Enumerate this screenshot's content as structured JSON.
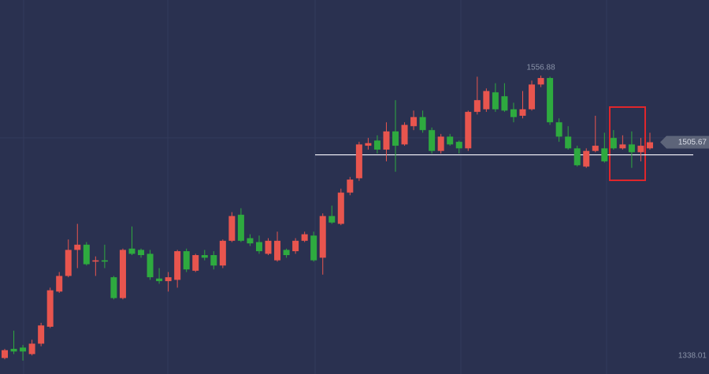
{
  "chart_data": {
    "type": "candlestick",
    "up_color": "#e8554e",
    "down_color": "#2eaa3f",
    "ylim": [
      1327.7,
      1614.9
    ],
    "hline": 1496,
    "open": [
      1340,
      1347,
      1348,
      1343,
      1351,
      1364,
      1391,
      1403,
      1423,
      1427,
      1414,
      1415,
      1402,
      1386,
      1424,
      1423,
      1420,
      1401,
      1399,
      1400,
      1422,
      1407,
      1419,
      1419,
      1411,
      1430,
      1450,
      1432,
      1429,
      1420,
      1415,
      1423,
      1422,
      1430,
      1434,
      1417,
      1449,
      1443,
      1467,
      1478,
      1503,
      1507,
      1500,
      1514,
      1504,
      1518,
      1525,
      1515,
      1499,
      1510,
      1506,
      1501,
      1529,
      1531,
      1544,
      1541,
      1531,
      1526,
      1531,
      1550,
      1555,
      1521,
      1510,
      1501,
      1487,
      1499,
      1501,
      1509,
      1501,
      1504,
      1498,
      1501
    ],
    "high": [
      1347,
      1361,
      1350,
      1354,
      1367,
      1394,
      1406,
      1431,
      1443,
      1429,
      1418,
      1427,
      1403,
      1424,
      1441,
      1424,
      1423,
      1409,
      1406,
      1423,
      1424,
      1420,
      1423,
      1422,
      1431,
      1452,
      1455,
      1435,
      1434,
      1432,
      1437,
      1424,
      1432,
      1437,
      1437,
      1451,
      1457,
      1470,
      1479,
      1506,
      1509,
      1511,
      1521,
      1538,
      1521,
      1530,
      1530,
      1517,
      1512,
      1512,
      1507,
      1530,
      1556,
      1547,
      1551,
      1551,
      1536,
      1545,
      1553,
      1556.88,
      1556,
      1524,
      1518,
      1503,
      1501,
      1526,
      1513,
      1515,
      1511,
      1514,
      1509,
      1513
    ],
    "low": [
      1339,
      1343,
      1338.01,
      1342,
      1349,
      1363,
      1390,
      1402,
      1409,
      1411,
      1403,
      1409,
      1385,
      1385,
      1419,
      1417,
      1400,
      1397,
      1391,
      1394,
      1406,
      1406,
      1415,
      1408,
      1409,
      1429,
      1429,
      1426,
      1420,
      1419,
      1414,
      1417,
      1420,
      1429,
      1414,
      1404,
      1443,
      1442,
      1465,
      1476,
      1500,
      1497,
      1491,
      1483,
      1503,
      1515,
      1513,
      1497,
      1497,
      1503,
      1497,
      1499,
      1527,
      1529,
      1529,
      1529,
      1521,
      1524,
      1530,
      1548,
      1519,
      1506,
      1500,
      1487,
      1486,
      1498,
      1490,
      1500,
      1500,
      1486,
      1491,
      1500
    ],
    "close": [
      1346,
      1345,
      1345,
      1351,
      1365,
      1392,
      1403,
      1423,
      1427,
      1412,
      1415,
      1414,
      1386,
      1423,
      1420,
      1419,
      1402,
      1399,
      1402,
      1422,
      1408,
      1419,
      1417,
      1411,
      1430,
      1449,
      1430,
      1428,
      1422,
      1430,
      1430,
      1419,
      1430,
      1435,
      1415,
      1449,
      1444,
      1467,
      1477,
      1504,
      1505,
      1500,
      1514,
      1503,
      1519,
      1525,
      1515,
      1499,
      1510,
      1504,
      1501,
      1529,
      1538,
      1545,
      1531,
      1530,
      1525,
      1531,
      1550,
      1555,
      1521,
      1510,
      1501,
      1488,
      1499,
      1503,
      1491,
      1501,
      1504,
      1498,
      1503,
      1505.67
    ]
  }
}
